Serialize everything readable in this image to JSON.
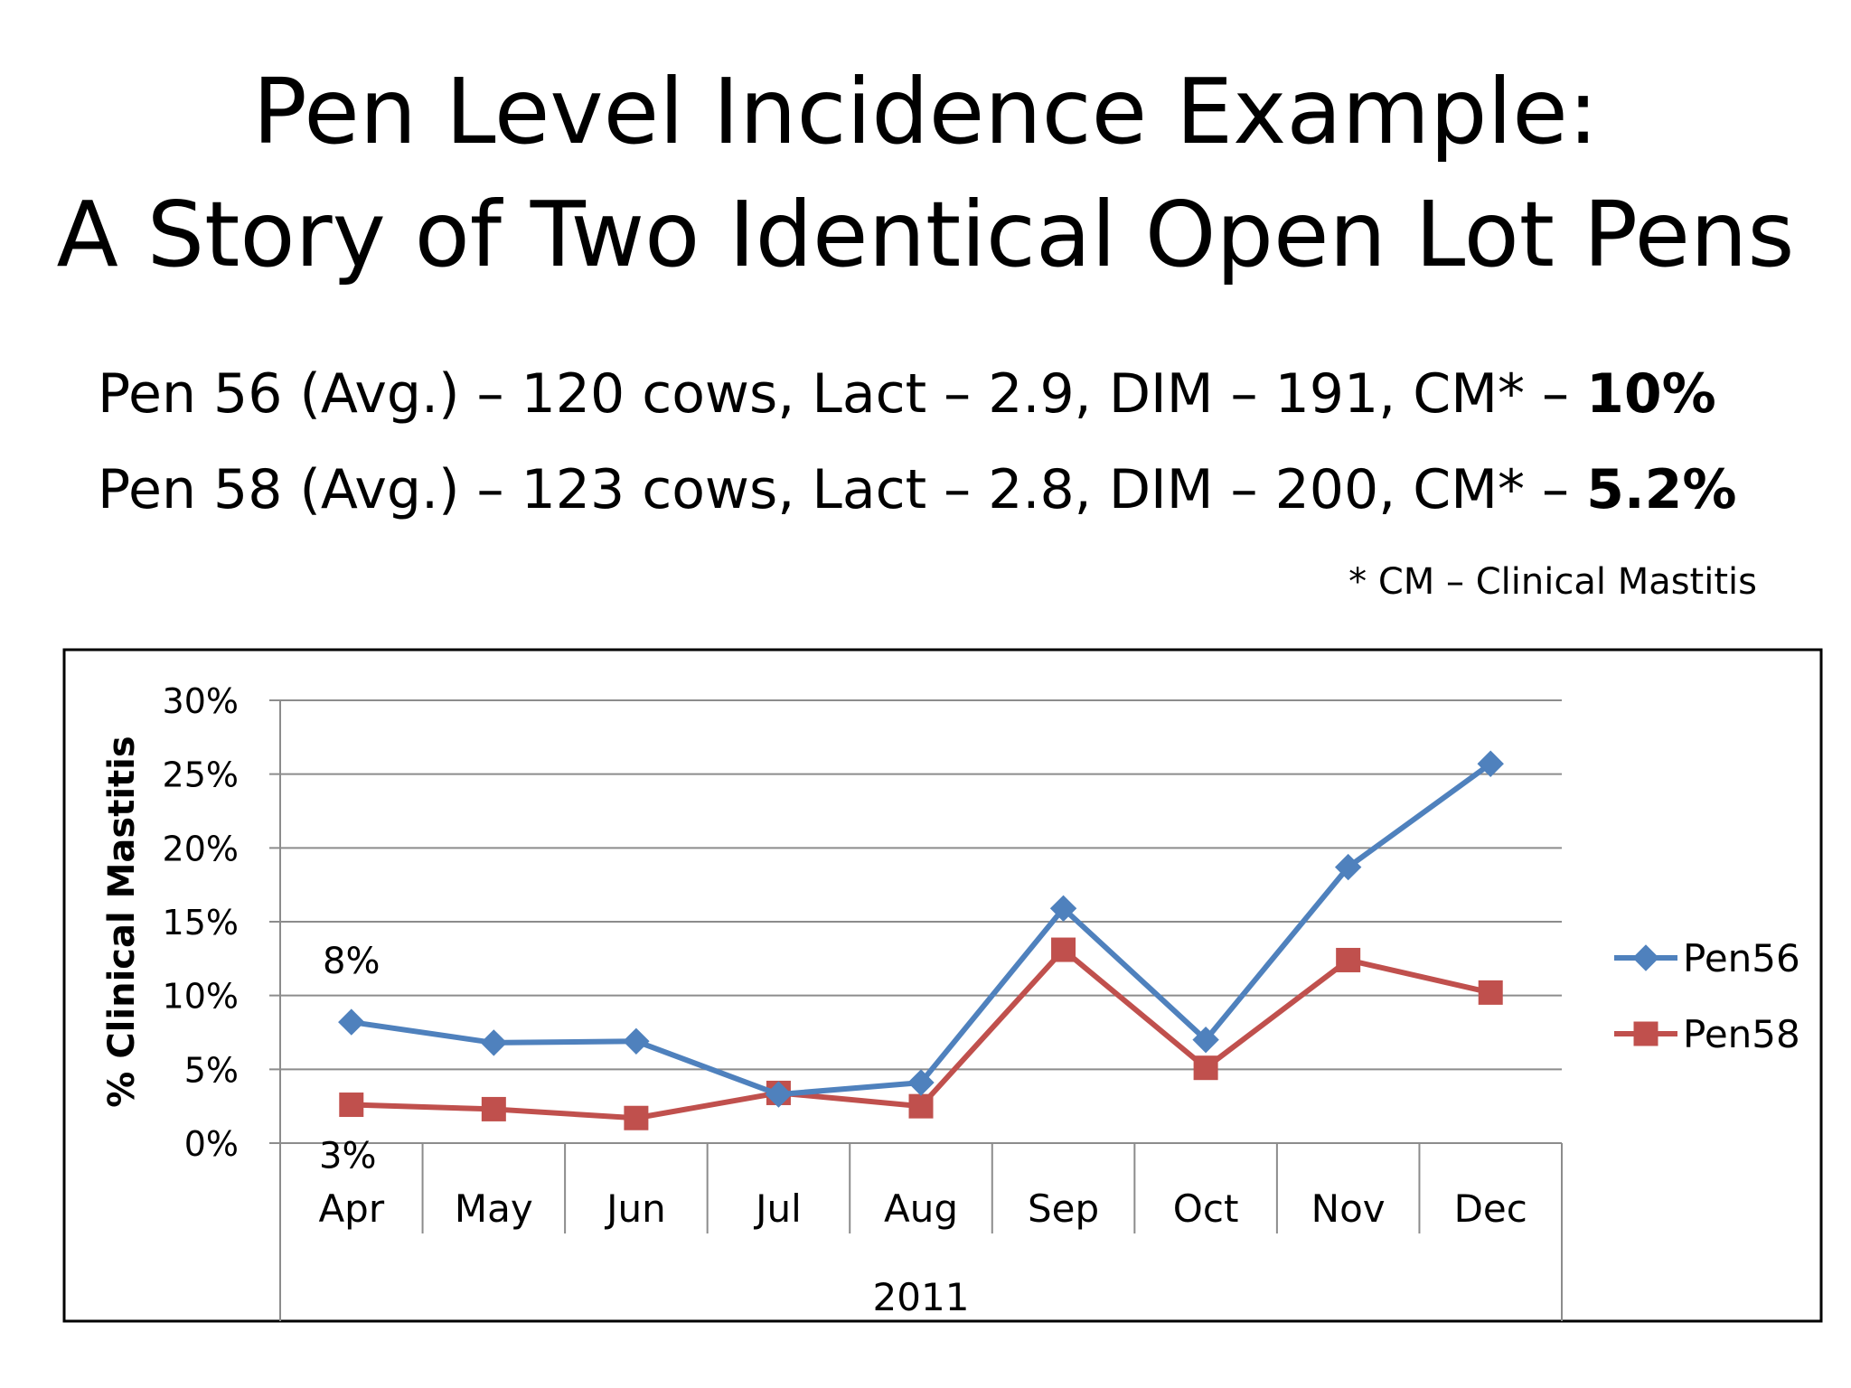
{
  "slide": {
    "title_line1": "Pen Level Incidence Example:",
    "title_line2": "A Story of Two Identical Open Lot Pens",
    "stat1_text": "Pen 56 (Avg.) – 120 cows, Lact – 2.9, DIM – 191, CM* – ",
    "stat1_value": "10%",
    "stat2_text": "Pen 58 (Avg.) – 123 cows, Lact – 2.8, DIM – 200, CM* – ",
    "stat2_value": "5.2%",
    "footnote": "* CM – Clinical Mastitis"
  },
  "chart_data": {
    "type": "line",
    "title": "",
    "xlabel": "2011",
    "ylabel": "% Clinical Mastitis",
    "categories": [
      "Apr",
      "May",
      "Jun",
      "Jul",
      "Aug",
      "Sep",
      "Oct",
      "Nov",
      "Dec"
    ],
    "ylim": [
      0,
      30
    ],
    "yticks": [
      "0%",
      "5%",
      "10%",
      "15%",
      "20%",
      "25%",
      "30%"
    ],
    "grid": true,
    "legend": "right",
    "series": [
      {
        "name": "Pen56",
        "color": "#4f81bd",
        "marker": "diamond",
        "values": [
          8.2,
          6.8,
          6.9,
          3.3,
          4.1,
          15.9,
          7.0,
          18.7,
          25.7
        ]
      },
      {
        "name": "Pen58",
        "color": "#c0504d",
        "marker": "square",
        "values": [
          2.6,
          2.3,
          1.7,
          3.4,
          2.5,
          13.1,
          5.1,
          12.4,
          10.2
        ]
      }
    ],
    "annotations": [
      "8%",
      "3%"
    ]
  }
}
